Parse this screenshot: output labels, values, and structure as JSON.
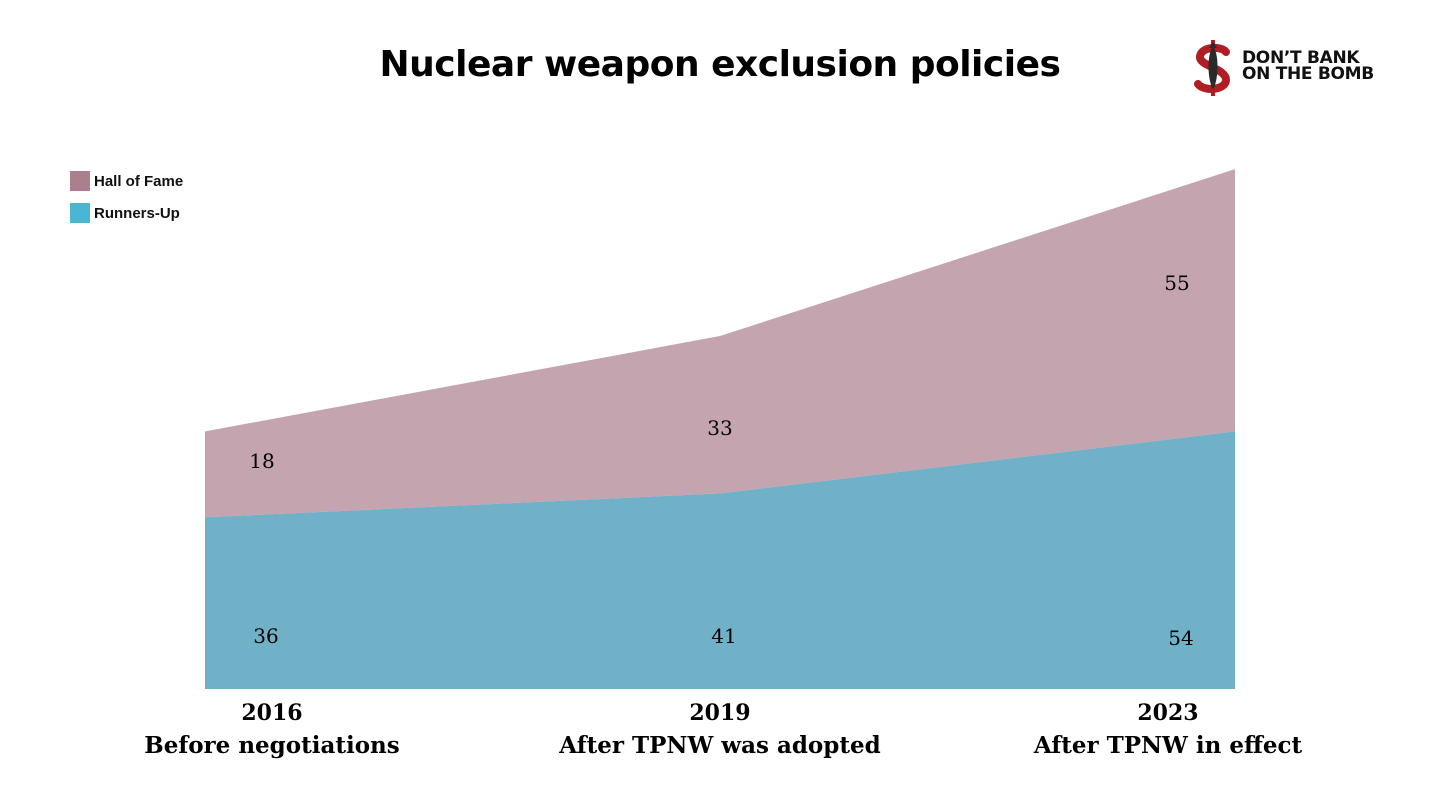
{
  "title": "Nuclear weapon exclusion policies",
  "logo": {
    "line1": "DON’T BANK",
    "line2": "ON THE BOMB",
    "icon": "dollar-bomb-icon"
  },
  "colors": {
    "hall_of_fame": "#c4a4ae",
    "runners_up": "#70b1c8",
    "legend_hall_of_fame": "#ad7f8d",
    "legend_runners_up": "#4bb5d4",
    "logo_red": "#b01e23"
  },
  "chart_data": {
    "type": "area",
    "stacked": true,
    "title": "Nuclear weapon exclusion policies",
    "categories": [
      "2016",
      "2019",
      "2023"
    ],
    "category_sublabels": [
      "Before negotiations",
      "After TPNW was adopted",
      "After TPNW in effect"
    ],
    "series": [
      {
        "name": "Runners-Up",
        "values": [
          36,
          41,
          54
        ]
      },
      {
        "name": "Hall of Fame",
        "values": [
          18,
          33,
          55
        ]
      }
    ],
    "legend": [
      "Hall of Fame",
      "Runners-Up"
    ],
    "legend_position": "top-left",
    "grid": false
  }
}
